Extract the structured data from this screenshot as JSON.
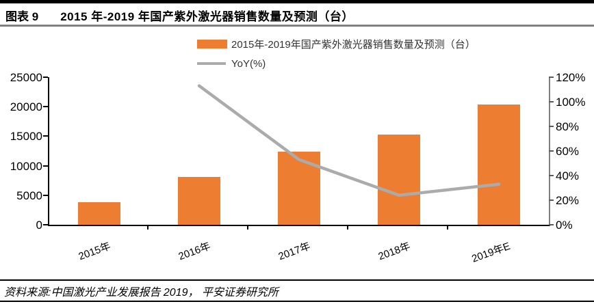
{
  "header": {
    "figure_label": "图表 9",
    "title": "2015 年-2019 年国产紫外激光器销售数量及预测（台）"
  },
  "legend": {
    "items": [
      {
        "label": "2015年-2019年国产紫外激光器销售数量及预测（台）",
        "marker": "bar-swatch",
        "color": "#ED7D31"
      },
      {
        "label": "YoY(%)",
        "marker": "line-swatch",
        "color": "#ABABAB"
      }
    ]
  },
  "chart_data": {
    "type": "bar",
    "title": "2015年-2019年国产紫外激光器销售数量及预测（台）",
    "categories": [
      "2015年",
      "2016年",
      "2017年",
      "2018年",
      "2019年E"
    ],
    "series": [
      {
        "name": "2015年-2019年国产紫外激光器销售数量及预测（台）",
        "type": "bar",
        "axis": "left",
        "color": "#ED7D31",
        "values": [
          3800,
          8100,
          12400,
          15300,
          20400
        ]
      },
      {
        "name": "YoY(%)",
        "type": "line",
        "axis": "right",
        "color": "#ABABAB",
        "unit": "%",
        "values": [
          null,
          113,
          53,
          24,
          33
        ]
      }
    ],
    "left_axis": {
      "min": 0,
      "max": 25000,
      "step": 5000
    },
    "right_axis": {
      "min": 0,
      "max": 120,
      "step": 20,
      "suffix": "%"
    },
    "grid": false,
    "legend_position": "top-center"
  },
  "footer": {
    "source": "资料来源:中国激光产业发展报告 2019， 平安证券研究所"
  }
}
